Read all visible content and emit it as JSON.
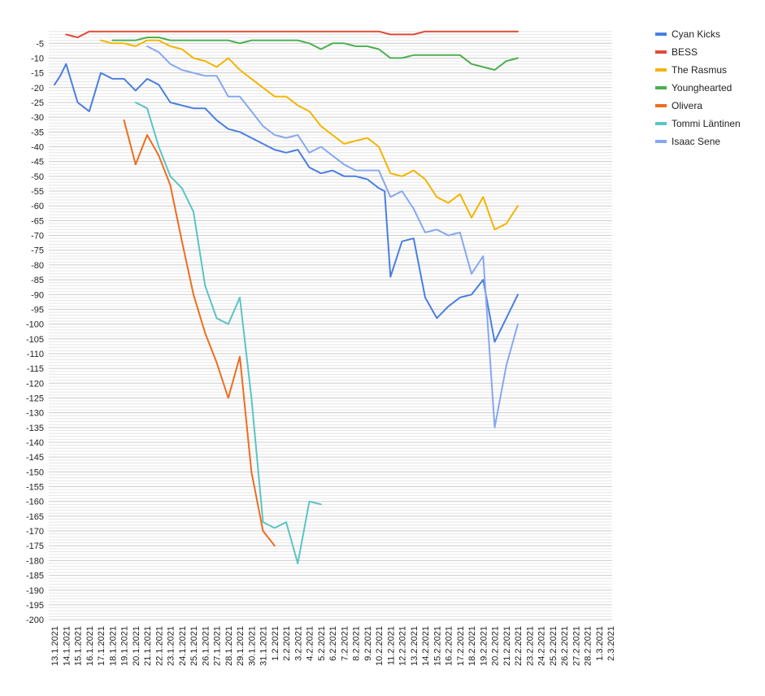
{
  "chart_data": {
    "type": "line",
    "title": "",
    "xlabel": "",
    "ylabel": "",
    "ylim": [
      -200,
      0
    ],
    "y_ticks": [
      -5,
      -10,
      -15,
      -20,
      -25,
      -30,
      -35,
      -40,
      -45,
      -50,
      -55,
      -60,
      -65,
      -70,
      -75,
      -80,
      -85,
      -90,
      -95,
      -100,
      -105,
      -110,
      -115,
      -120,
      -125,
      -130,
      -135,
      -140,
      -145,
      -150,
      -155,
      -160,
      -165,
      -170,
      -175,
      -180,
      -185,
      -190,
      -195,
      -200
    ],
    "grid": true,
    "legend_position": "right",
    "categories": [
      "13.1.2021",
      "14.1.2021",
      "15.1.2021",
      "16.1.2021",
      "17.1.2021",
      "18.1.2021",
      "19.1.2021",
      "20.1.2021",
      "21.1.2021",
      "22.1.2021",
      "23.1.2021",
      "24.1.2021",
      "25.1.2021",
      "26.1.2021",
      "27.1.2021",
      "28.1.2021",
      "29.1.2021",
      "30.1.2021",
      "31.1.2021",
      "1.2.2021",
      "2.2.2021",
      "3.2.2021",
      "4.2.2021",
      "5.2.2021",
      "6.2.2021",
      "7.2.2021",
      "8.2.2021",
      "9.2.2021",
      "10.2.2021",
      "11.2.2021",
      "12.2.2021",
      "13.2.2021",
      "14.2.2021",
      "15.2.2021",
      "16.2.2021",
      "17.2.2021",
      "18.2.2021",
      "19.2.2021",
      "20.2.2021",
      "21.2.2021",
      "22.2.2021",
      "23.2.2021",
      "24.2.2021",
      "25.2.2021",
      "26.2.2021",
      "27.2.2021",
      "28.2.2021",
      "1.3.2021",
      "2.3.2021"
    ],
    "series": [
      {
        "name": "Cyan Kicks",
        "color": "#4a7fe0",
        "width": 2,
        "x": [
          0,
          0.5,
          1,
          2,
          3,
          4,
          5,
          6,
          7,
          8,
          9,
          10,
          11,
          12,
          13,
          14,
          15,
          16,
          17,
          18,
          19,
          20,
          21,
          22,
          23,
          24,
          25,
          26,
          27,
          28,
          28.5,
          29,
          30,
          31,
          32,
          33,
          34,
          35,
          36,
          37,
          38,
          39,
          40
        ],
        "values": [
          -19,
          -16,
          -12,
          -25,
          -28,
          -15,
          -17,
          -17,
          -21,
          -17,
          -19,
          -25,
          -26,
          -27,
          -27,
          -31,
          -34,
          -35,
          -37,
          -39,
          -41,
          -42,
          -41,
          -47,
          -49,
          -48,
          -50,
          -50,
          -51,
          -54,
          -55,
          -84,
          -72,
          -71,
          -91,
          -98,
          -94,
          -91,
          -90,
          -85,
          -106,
          -98,
          -90
        ]
      },
      {
        "name": "BESS",
        "color": "#dd4b39",
        "width": 2,
        "x": [
          1,
          2,
          3,
          4,
          5,
          6,
          7,
          8,
          9,
          10,
          11,
          12,
          13,
          14,
          15,
          16,
          17,
          18,
          19,
          20,
          21,
          22,
          23,
          24,
          25,
          26,
          27,
          28,
          29,
          30,
          31,
          32,
          33,
          34,
          35,
          36,
          37,
          38,
          39,
          40
        ],
        "values": [
          -2,
          -3,
          -1,
          -1,
          -1,
          -1,
          -1,
          -1,
          -1,
          -1,
          -1,
          -1,
          -1,
          -1,
          -1,
          -1,
          -1,
          -1,
          -1,
          -1,
          -1,
          -1,
          -1,
          -1,
          -1,
          -1,
          -1,
          -1,
          -2,
          -2,
          -2,
          -1,
          -1,
          -1,
          -1,
          -1,
          -1,
          -1,
          -1,
          -1
        ]
      },
      {
        "name": "The Rasmus",
        "color": "#f4b400",
        "width": 2,
        "x": [
          4,
          5,
          6,
          7,
          8,
          9,
          10,
          11,
          12,
          13,
          14,
          15,
          16,
          17,
          18,
          19,
          20,
          21,
          22,
          23,
          24,
          25,
          26,
          27,
          28,
          29,
          30,
          31,
          32,
          33,
          34,
          35,
          36,
          37,
          38,
          39,
          40
        ],
        "values": [
          -4,
          -5,
          -5,
          -6,
          -4,
          -4,
          -6,
          -7,
          -10,
          -11,
          -13,
          -10,
          -14,
          -17,
          -20,
          -23,
          -23,
          -26,
          -28,
          -33,
          -36,
          -39,
          -38,
          -37,
          -40,
          -49,
          -50,
          -48,
          -51,
          -57,
          -59,
          -56,
          -64,
          -57,
          -68,
          -66,
          -60
        ]
      },
      {
        "name": "Younghearted",
        "color": "#4caf50",
        "width": 2,
        "x": [
          5,
          6,
          7,
          8,
          9,
          10,
          11,
          12,
          13,
          14,
          15,
          16,
          17,
          18,
          19,
          20,
          21,
          22,
          23,
          24,
          25,
          26,
          27,
          28,
          29,
          30,
          31,
          32,
          33,
          34,
          35,
          36,
          37,
          38,
          39,
          40
        ],
        "values": [
          -4,
          -4,
          -4,
          -3,
          -3,
          -4,
          -4,
          -4,
          -4,
          -4,
          -4,
          -5,
          -4,
          -4,
          -4,
          -4,
          -4,
          -5,
          -7,
          -5,
          -5,
          -6,
          -6,
          -7,
          -10,
          -10,
          -9,
          -9,
          -9,
          -9,
          -9,
          -12,
          -13,
          -14,
          -11,
          -10
        ]
      },
      {
        "name": "Olivera",
        "color": "#ef6c1e",
        "width": 2,
        "x": [
          6,
          7,
          8,
          9,
          10,
          11,
          12,
          13,
          14,
          15,
          16,
          17,
          18,
          19
        ],
        "values": [
          -31,
          -46,
          -36,
          -43,
          -53,
          -72,
          -90,
          -103,
          -113,
          -125,
          -111,
          -150,
          -170,
          -175
        ]
      },
      {
        "name": "Tommi Läntinen",
        "color": "#5bc4c4",
        "width": 2,
        "x": [
          7,
          8,
          9,
          10,
          11,
          12,
          13,
          14,
          15,
          16,
          17,
          18,
          19,
          20,
          21,
          22,
          23
        ],
        "values": [
          -25,
          -27,
          -40,
          -50,
          -54,
          -62,
          -87,
          -98,
          -100,
          -91,
          -125,
          -167,
          -169,
          -167,
          -181,
          -160,
          -161
        ]
      },
      {
        "name": "Isaac Sene",
        "color": "#86a8f0",
        "width": 2,
        "x": [
          8,
          9,
          10,
          11,
          12,
          13,
          14,
          15,
          16,
          17,
          18,
          19,
          20,
          21,
          22,
          23,
          24,
          25,
          26,
          27,
          28,
          29,
          30,
          31,
          32,
          33,
          34,
          35,
          36,
          37,
          38,
          39,
          40
        ],
        "values": [
          -6,
          -8,
          -12,
          -14,
          -15,
          -16,
          -16,
          -23,
          -23,
          -28,
          -33,
          -36,
          -37,
          -36,
          -42,
          -40,
          -43,
          -46,
          -48,
          -48,
          -48,
          -57,
          -55,
          -61,
          -69,
          -68,
          -70,
          -69,
          -83,
          -77,
          -135,
          -114,
          -100
        ]
      }
    ]
  }
}
